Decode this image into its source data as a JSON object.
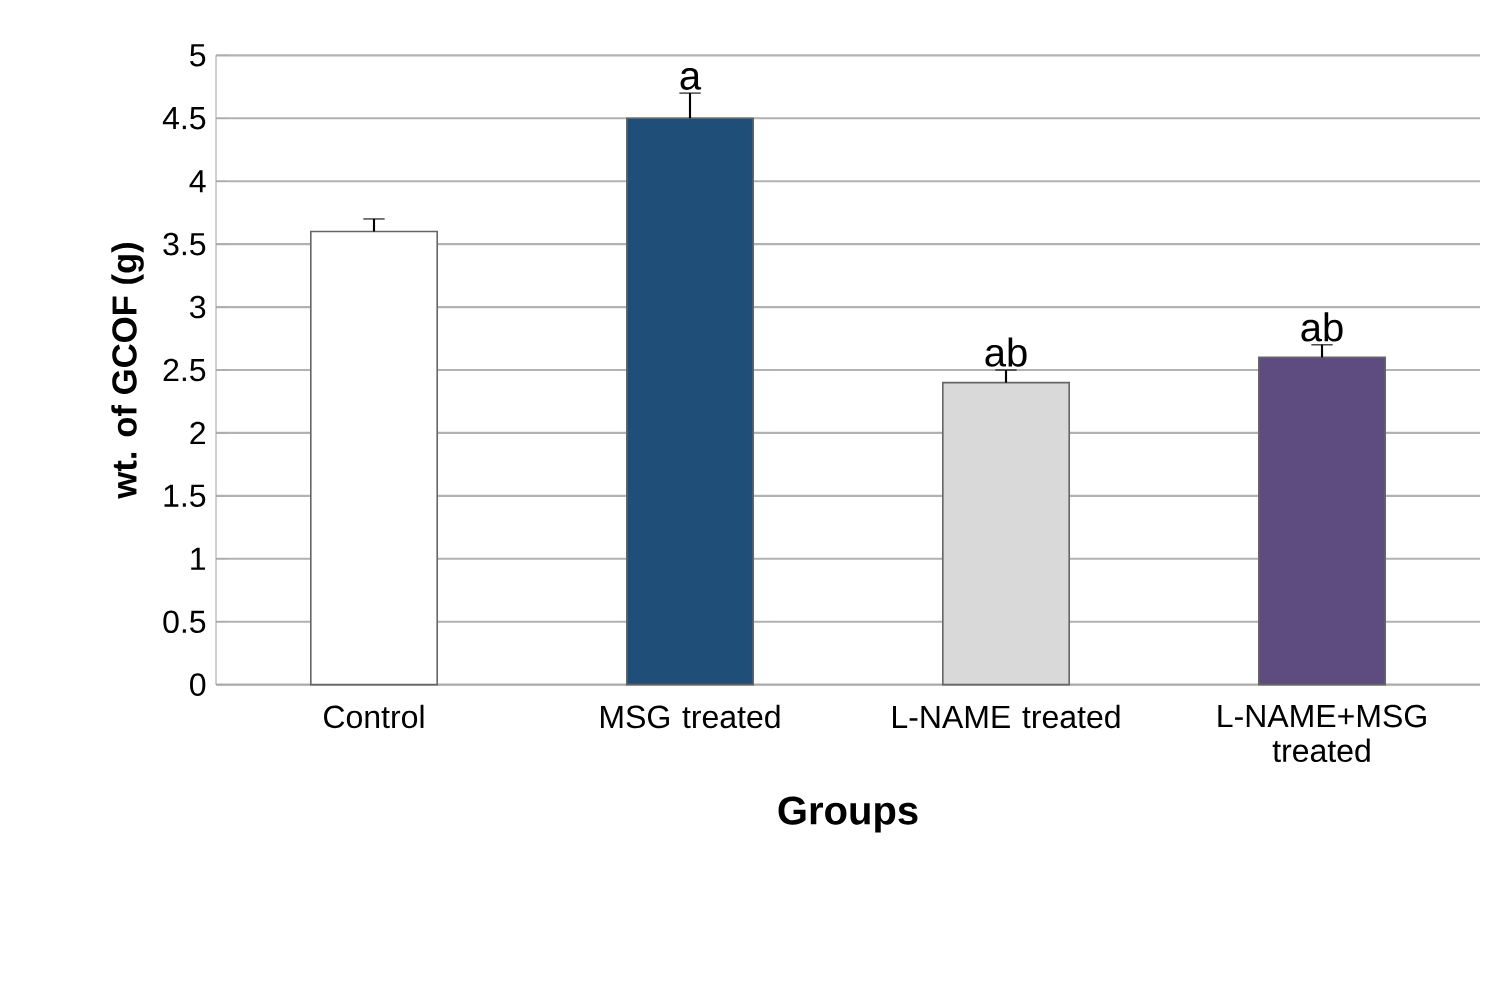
{
  "chart_data": {
    "type": "bar",
    "xlabel": "Groups",
    "ylabel": "wt. of GCOF (g)",
    "categories": [
      "Control",
      "MSG treated",
      "L-NAME treated",
      "L-NAME+MSG treated"
    ],
    "values": [
      3.6,
      4.5,
      2.4,
      2.6
    ],
    "errors": [
      0.1,
      0.2,
      0.1,
      0.1
    ],
    "colors": [
      "#ffffff",
      "#1f4e79",
      "#d9d9d9",
      "#5e4b80"
    ],
    "annotations": [
      {
        "text": "a",
        "x": "MSG treated",
        "y": 4.7
      },
      {
        "text": "ab",
        "x": "L-NAME treated",
        "y": 2.5
      },
      {
        "text": "ab",
        "x": "L-NAME+MSG treated",
        "y": 2.7
      }
    ],
    "ylim": [
      0,
      5
    ],
    "yticks": [
      0,
      0.5,
      1,
      1.5,
      2,
      2.5,
      3,
      3.5,
      4,
      4.5,
      5
    ],
    "grid": "y"
  }
}
